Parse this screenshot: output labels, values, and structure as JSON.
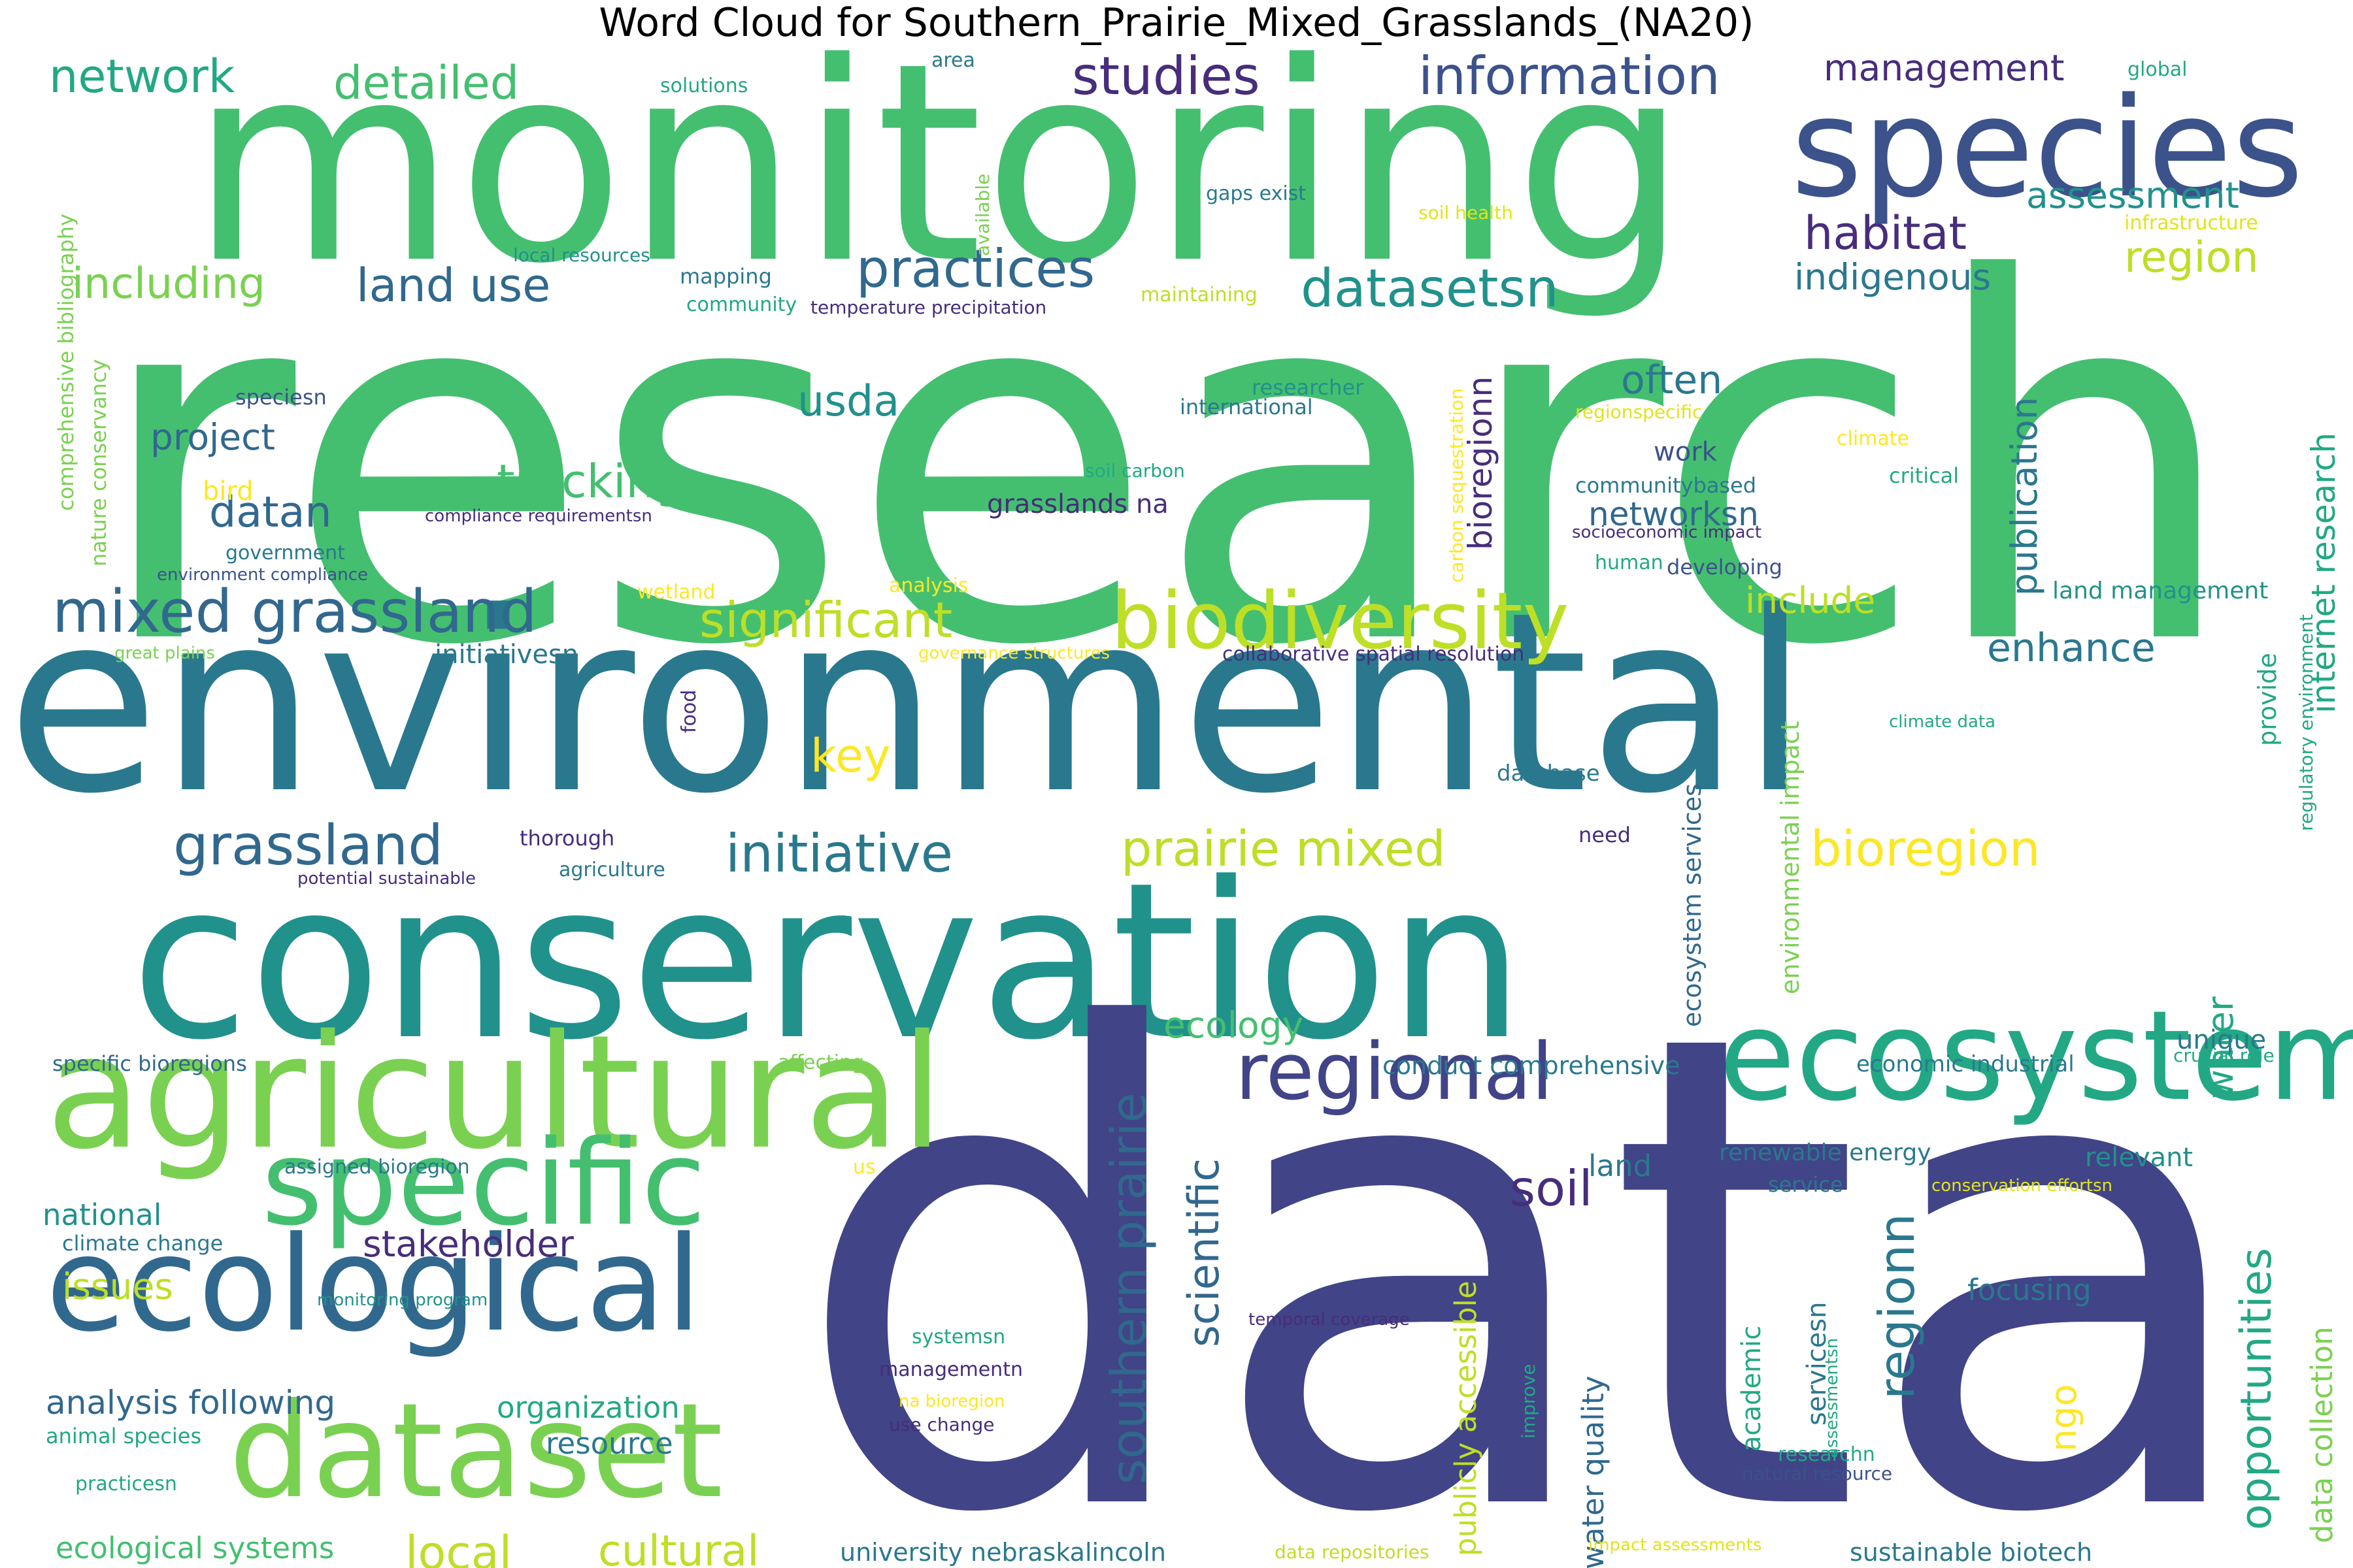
{
  "title": "Word Cloud for Southern_Prairie_Mixed_Grasslands_(NA20)",
  "colors": {
    "background": "#ffffff",
    "title": "#000000",
    "palette": {
      "navy": "#414487",
      "purple": "#472d7b",
      "indigo": "#3b528b",
      "blue": "#31688e",
      "steel": "#2a788e",
      "teal": "#21918c",
      "sea": "#22a884",
      "green": "#44bf70",
      "lime": "#7ad151",
      "chartreuse": "#bddf26",
      "yellow": "#e2e418",
      "gold": "#fde725",
      "dark": "#440154"
    }
  },
  "words": [
    {
      "text": "research",
      "color": "green"
    },
    {
      "text": "monitoring",
      "color": "green"
    },
    {
      "text": "environmental",
      "color": "steel"
    },
    {
      "text": "conservation",
      "color": "teal"
    },
    {
      "text": "data",
      "color": "navy"
    },
    {
      "text": "species",
      "color": "indigo"
    },
    {
      "text": "agricultural",
      "color": "lime"
    },
    {
      "text": "ecosystem",
      "color": "sea"
    },
    {
      "text": "ecological",
      "color": "blue"
    },
    {
      "text": "dataset",
      "color": "lime"
    },
    {
      "text": "specific",
      "color": "green"
    },
    {
      "text": "regional",
      "color": "navy"
    },
    {
      "text": "biodiversity",
      "color": "chartreuse"
    },
    {
      "text": "mixed grassland",
      "color": "blue"
    },
    {
      "text": "information",
      "color": "indigo"
    },
    {
      "text": "studies",
      "color": "purple"
    },
    {
      "text": "practices",
      "color": "blue"
    },
    {
      "text": "datasetsn",
      "color": "teal"
    },
    {
      "text": "initiative",
      "color": "steel"
    },
    {
      "text": "grassland",
      "color": "blue"
    },
    {
      "text": "prairie mixed",
      "color": "chartreuse"
    },
    {
      "text": "bioregion",
      "color": "gold"
    },
    {
      "text": "significant",
      "color": "chartreuse"
    },
    {
      "text": "network",
      "color": "sea"
    },
    {
      "text": "detailed",
      "color": "green"
    },
    {
      "text": "land use",
      "color": "blue"
    },
    {
      "text": "including",
      "color": "lime"
    },
    {
      "text": "habitat",
      "color": "purple"
    },
    {
      "text": "region",
      "color": "chartreuse"
    },
    {
      "text": "indigenous",
      "color": "steel"
    },
    {
      "text": "assessment",
      "color": "teal"
    },
    {
      "text": "management",
      "color": "purple"
    },
    {
      "text": "tracking",
      "color": "green"
    },
    {
      "text": "project",
      "color": "blue"
    },
    {
      "text": "datan",
      "color": "blue"
    },
    {
      "text": "usda",
      "color": "teal"
    },
    {
      "text": "often",
      "color": "steel"
    },
    {
      "text": "networksn",
      "color": "blue"
    },
    {
      "text": "include",
      "color": "chartreuse"
    },
    {
      "text": "enhance",
      "color": "steel"
    },
    {
      "text": "key",
      "color": "gold"
    },
    {
      "text": "southern prairie",
      "color": "blue"
    },
    {
      "text": "scientific",
      "color": "blue"
    },
    {
      "text": "ecology",
      "color": "green"
    },
    {
      "text": "stakeholder",
      "color": "purple"
    },
    {
      "text": "soil",
      "color": "purple"
    },
    {
      "text": "regionn",
      "color": "steel"
    },
    {
      "text": "opportunities",
      "color": "sea"
    },
    {
      "text": "local",
      "color": "chartreuse"
    },
    {
      "text": "cultural",
      "color": "chartreuse"
    },
    {
      "text": "issues",
      "color": "chartreuse"
    },
    {
      "text": "national",
      "color": "teal"
    },
    {
      "text": "analysis following",
      "color": "blue"
    },
    {
      "text": "organization",
      "color": "sea"
    },
    {
      "text": "resource",
      "color": "steel"
    },
    {
      "text": "ecological systems",
      "color": "green"
    },
    {
      "text": "bioregionn",
      "color": "purple"
    },
    {
      "text": "publication",
      "color": "steel"
    },
    {
      "text": "internet research",
      "color": "sea"
    },
    {
      "text": "water",
      "color": "sea"
    },
    {
      "text": "unique",
      "color": "steel"
    },
    {
      "text": "relevant",
      "color": "teal"
    },
    {
      "text": "focusing",
      "color": "steel"
    },
    {
      "text": "ngo",
      "color": "gold"
    },
    {
      "text": "data collection",
      "color": "lime"
    },
    {
      "text": "publicly accessible",
      "color": "chartreuse"
    },
    {
      "text": "water quality",
      "color": "blue"
    },
    {
      "text": "land",
      "color": "steel"
    },
    {
      "text": "academic",
      "color": "sea"
    },
    {
      "text": "servicesn",
      "color": "steel"
    },
    {
      "text": "grasslands na",
      "color": "purple"
    },
    {
      "text": "work",
      "color": "indigo"
    },
    {
      "text": "solutions",
      "color": "sea"
    },
    {
      "text": "area",
      "color": "steel"
    },
    {
      "text": "global",
      "color": "sea"
    },
    {
      "text": "gaps exist",
      "color": "steel"
    },
    {
      "text": "soil health",
      "color": "yellow"
    },
    {
      "text": "infrastructure",
      "color": "yellow"
    },
    {
      "text": "available",
      "color": "lime"
    },
    {
      "text": "comprehensive bibliography",
      "color": "lime"
    },
    {
      "text": "nature conservancy",
      "color": "lime"
    },
    {
      "text": "local resources",
      "color": "teal"
    },
    {
      "text": "mapping",
      "color": "steel"
    },
    {
      "text": "community",
      "color": "sea"
    },
    {
      "text": "temperature precipitation",
      "color": "purple"
    },
    {
      "text": "maintaining",
      "color": "chartreuse"
    },
    {
      "text": "speciesn",
      "color": "indigo"
    },
    {
      "text": "researcher",
      "color": "teal"
    },
    {
      "text": "international",
      "color": "steel"
    },
    {
      "text": "regionspecific",
      "color": "yellow"
    },
    {
      "text": "climate",
      "color": "gold"
    },
    {
      "text": "critical",
      "color": "sea"
    },
    {
      "text": "soil carbon",
      "color": "sea"
    },
    {
      "text": "carbon sequestration",
      "color": "gold"
    },
    {
      "text": "bird",
      "color": "gold"
    },
    {
      "text": "government",
      "color": "steel"
    },
    {
      "text": "compliance requirementsn",
      "color": "purple"
    },
    {
      "text": "environment compliance",
      "color": "indigo"
    },
    {
      "text": "communitybased",
      "color": "steel"
    },
    {
      "text": "socioeconomic impact",
      "color": "purple"
    },
    {
      "text": "human",
      "color": "sea"
    },
    {
      "text": "developing",
      "color": "indigo"
    },
    {
      "text": "wetland",
      "color": "gold"
    },
    {
      "text": "analysis",
      "color": "gold"
    },
    {
      "text": "land management",
      "color": "teal"
    },
    {
      "text": "great plains",
      "color": "lime"
    },
    {
      "text": "initiativesn",
      "color": "steel"
    },
    {
      "text": "governance structures",
      "color": "gold"
    },
    {
      "text": "collaborative spatial resolution",
      "color": "purple"
    },
    {
      "text": "food",
      "color": "purple"
    },
    {
      "text": "climate data",
      "color": "sea"
    },
    {
      "text": "provide",
      "color": "sea"
    },
    {
      "text": "regulatory environment",
      "color": "sea"
    },
    {
      "text": "environmental impact",
      "color": "lime"
    },
    {
      "text": "ecosystem services",
      "color": "blue"
    },
    {
      "text": "database",
      "color": "steel"
    },
    {
      "text": "need",
      "color": "purple"
    },
    {
      "text": "thorough",
      "color": "purple"
    },
    {
      "text": "agriculture",
      "color": "steel"
    },
    {
      "text": "potential sustainable",
      "color": "purple"
    },
    {
      "text": "specific bioregions",
      "color": "blue"
    },
    {
      "text": "affecting",
      "color": "lime"
    },
    {
      "text": "conduct comprehensive",
      "color": "steel"
    },
    {
      "text": "economic industrial",
      "color": "steel"
    },
    {
      "text": "crucial role",
      "color": "sea"
    },
    {
      "text": "assigned bioregion",
      "color": "steel"
    },
    {
      "text": "us",
      "color": "gold"
    },
    {
      "text": "renewable energy",
      "color": "steel"
    },
    {
      "text": "service",
      "color": "steel"
    },
    {
      "text": "conservation effortsn",
      "color": "yellow"
    },
    {
      "text": "climate change",
      "color": "steel"
    },
    {
      "text": "monitoring program",
      "color": "teal"
    },
    {
      "text": "temporal coverage",
      "color": "purple"
    },
    {
      "text": "improve",
      "color": "sea"
    },
    {
      "text": "assessmentsn",
      "color": "sea"
    },
    {
      "text": "systemsn",
      "color": "sea"
    },
    {
      "text": "managementn",
      "color": "purple"
    },
    {
      "text": "na bioregion",
      "color": "gold"
    },
    {
      "text": "use change",
      "color": "purple"
    },
    {
      "text": "animal species",
      "color": "sea"
    },
    {
      "text": "practicesn",
      "color": "sea"
    },
    {
      "text": "researchn",
      "color": "sea"
    },
    {
      "text": "natural resource",
      "color": "indigo"
    },
    {
      "text": "university nebraskalincoln",
      "color": "steel"
    },
    {
      "text": "data repositories",
      "color": "chartreuse"
    },
    {
      "text": "impact assessments",
      "color": "yellow"
    },
    {
      "text": "sustainable biotech",
      "color": "steel"
    }
  ]
}
